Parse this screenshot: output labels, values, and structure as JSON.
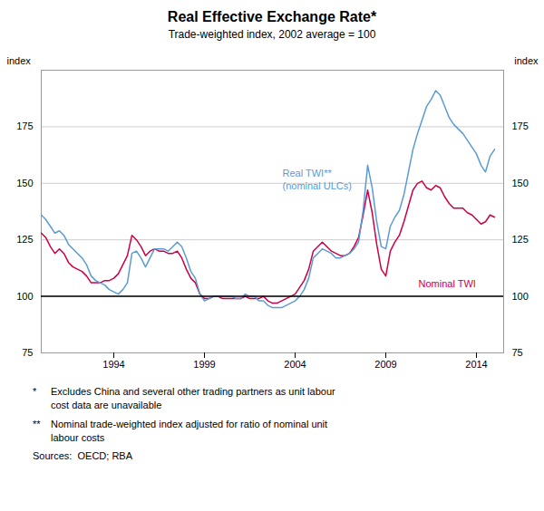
{
  "chart_data": {
    "type": "line",
    "title": "Real Effective Exchange Rate*",
    "subtitle": "Trade-weighted index, 2002 average = 100",
    "ylabel": "index",
    "y2label": "index",
    "x": [
      1990.0,
      1990.25,
      1990.5,
      1990.75,
      1991.0,
      1991.25,
      1991.5,
      1991.75,
      1992.0,
      1992.25,
      1992.5,
      1992.75,
      1993.0,
      1993.25,
      1993.5,
      1993.75,
      1994.0,
      1994.25,
      1994.5,
      1994.75,
      1995.0,
      1995.25,
      1995.5,
      1995.75,
      1996.0,
      1996.25,
      1996.5,
      1996.75,
      1997.0,
      1997.25,
      1997.5,
      1997.75,
      1998.0,
      1998.25,
      1998.5,
      1998.75,
      1999.0,
      1999.25,
      1999.5,
      1999.75,
      2000.0,
      2000.25,
      2000.5,
      2000.75,
      2001.0,
      2001.25,
      2001.5,
      2001.75,
      2002.0,
      2002.25,
      2002.5,
      2002.75,
      2003.0,
      2003.25,
      2003.5,
      2003.75,
      2004.0,
      2004.25,
      2004.5,
      2004.75,
      2005.0,
      2005.25,
      2005.5,
      2005.75,
      2006.0,
      2006.25,
      2006.5,
      2006.75,
      2007.0,
      2007.25,
      2007.5,
      2007.75,
      2008.0,
      2008.25,
      2008.5,
      2008.75,
      2009.0,
      2009.25,
      2009.5,
      2009.75,
      2010.0,
      2010.25,
      2010.5,
      2010.75,
      2011.0,
      2011.25,
      2011.5,
      2011.75,
      2012.0,
      2012.25,
      2012.5,
      2012.75,
      2013.0,
      2013.25,
      2013.5,
      2013.75,
      2014.0,
      2014.25,
      2014.5,
      2014.75,
      2015.0
    ],
    "series": [
      {
        "color": "#5B9BD5",
        "values": [
          136,
          134,
          131,
          128,
          129,
          127,
          123,
          121,
          119,
          117,
          114,
          109,
          107,
          106,
          105,
          103,
          102,
          101,
          103,
          106,
          119,
          120,
          117,
          113,
          117,
          121,
          121,
          121,
          120,
          122,
          124,
          122,
          117,
          111,
          108,
          101,
          98,
          99,
          100,
          100,
          100,
          100,
          100,
          99,
          99,
          101,
          100,
          100,
          98,
          98,
          96,
          95,
          95,
          95,
          96,
          97,
          98,
          100,
          103,
          108,
          117,
          119,
          121,
          120,
          119,
          117,
          117,
          118,
          119,
          121,
          124,
          138,
          158,
          148,
          133,
          122,
          121,
          131,
          135,
          138,
          145,
          155,
          165,
          172,
          178,
          184,
          187,
          191,
          189,
          184,
          179,
          176,
          174,
          172,
          169,
          166,
          163,
          158,
          155,
          162,
          165
        ]
      },
      {
        "color": "#CC0044",
        "values": [
          128,
          126,
          122,
          119,
          121,
          119,
          115,
          113,
          112,
          111,
          109,
          106,
          106,
          106,
          107,
          107,
          108,
          110,
          114,
          118,
          127,
          125,
          122,
          118,
          120,
          121,
          120,
          120,
          119,
          119,
          120,
          117,
          112,
          108,
          106,
          101,
          99,
          99,
          100,
          100,
          99,
          99,
          99,
          99,
          99,
          100,
          99,
          99,
          99,
          100,
          98,
          97,
          97,
          98,
          99,
          100,
          101,
          104,
          107,
          112,
          120,
          122,
          124,
          122,
          120,
          119,
          118,
          118,
          119,
          122,
          126,
          136,
          147,
          137,
          123,
          112,
          109,
          120,
          124,
          127,
          133,
          140,
          147,
          150,
          151,
          148,
          147,
          149,
          148,
          144,
          141,
          139,
          139,
          139,
          137,
          136,
          134,
          132,
          133,
          136,
          135
        ]
      }
    ],
    "annotations": [
      {
        "text": "Real TWI**\n(nominal ULCs)",
        "x": 2003.3,
        "y": 152,
        "color": "#5B9BD5"
      },
      {
        "text": "Nominal TWI",
        "x": 2010.8,
        "y": 106,
        "color": "#CC0044"
      }
    ],
    "hline": 100,
    "xlim": [
      1990.0,
      2015.5
    ],
    "xticks": [
      1994,
      1999,
      2004,
      2009,
      2014
    ],
    "ylim": [
      75,
      200
    ],
    "yticks": [
      75,
      100,
      125,
      150,
      175
    ],
    "y2lim": [
      75,
      200
    ],
    "y2ticks": [
      75,
      100,
      125,
      150,
      175
    ],
    "grid": true,
    "footnotes": [
      {
        "symbol": "*",
        "text": "Excludes China and several other trading partners as unit labour\ncost data are unavailable"
      },
      {
        "symbol": "**",
        "text": "Nominal trade-weighted index adjusted for ratio of nominal unit\nlabour costs"
      }
    ],
    "sources": "Sources:  OECD; RBA"
  }
}
